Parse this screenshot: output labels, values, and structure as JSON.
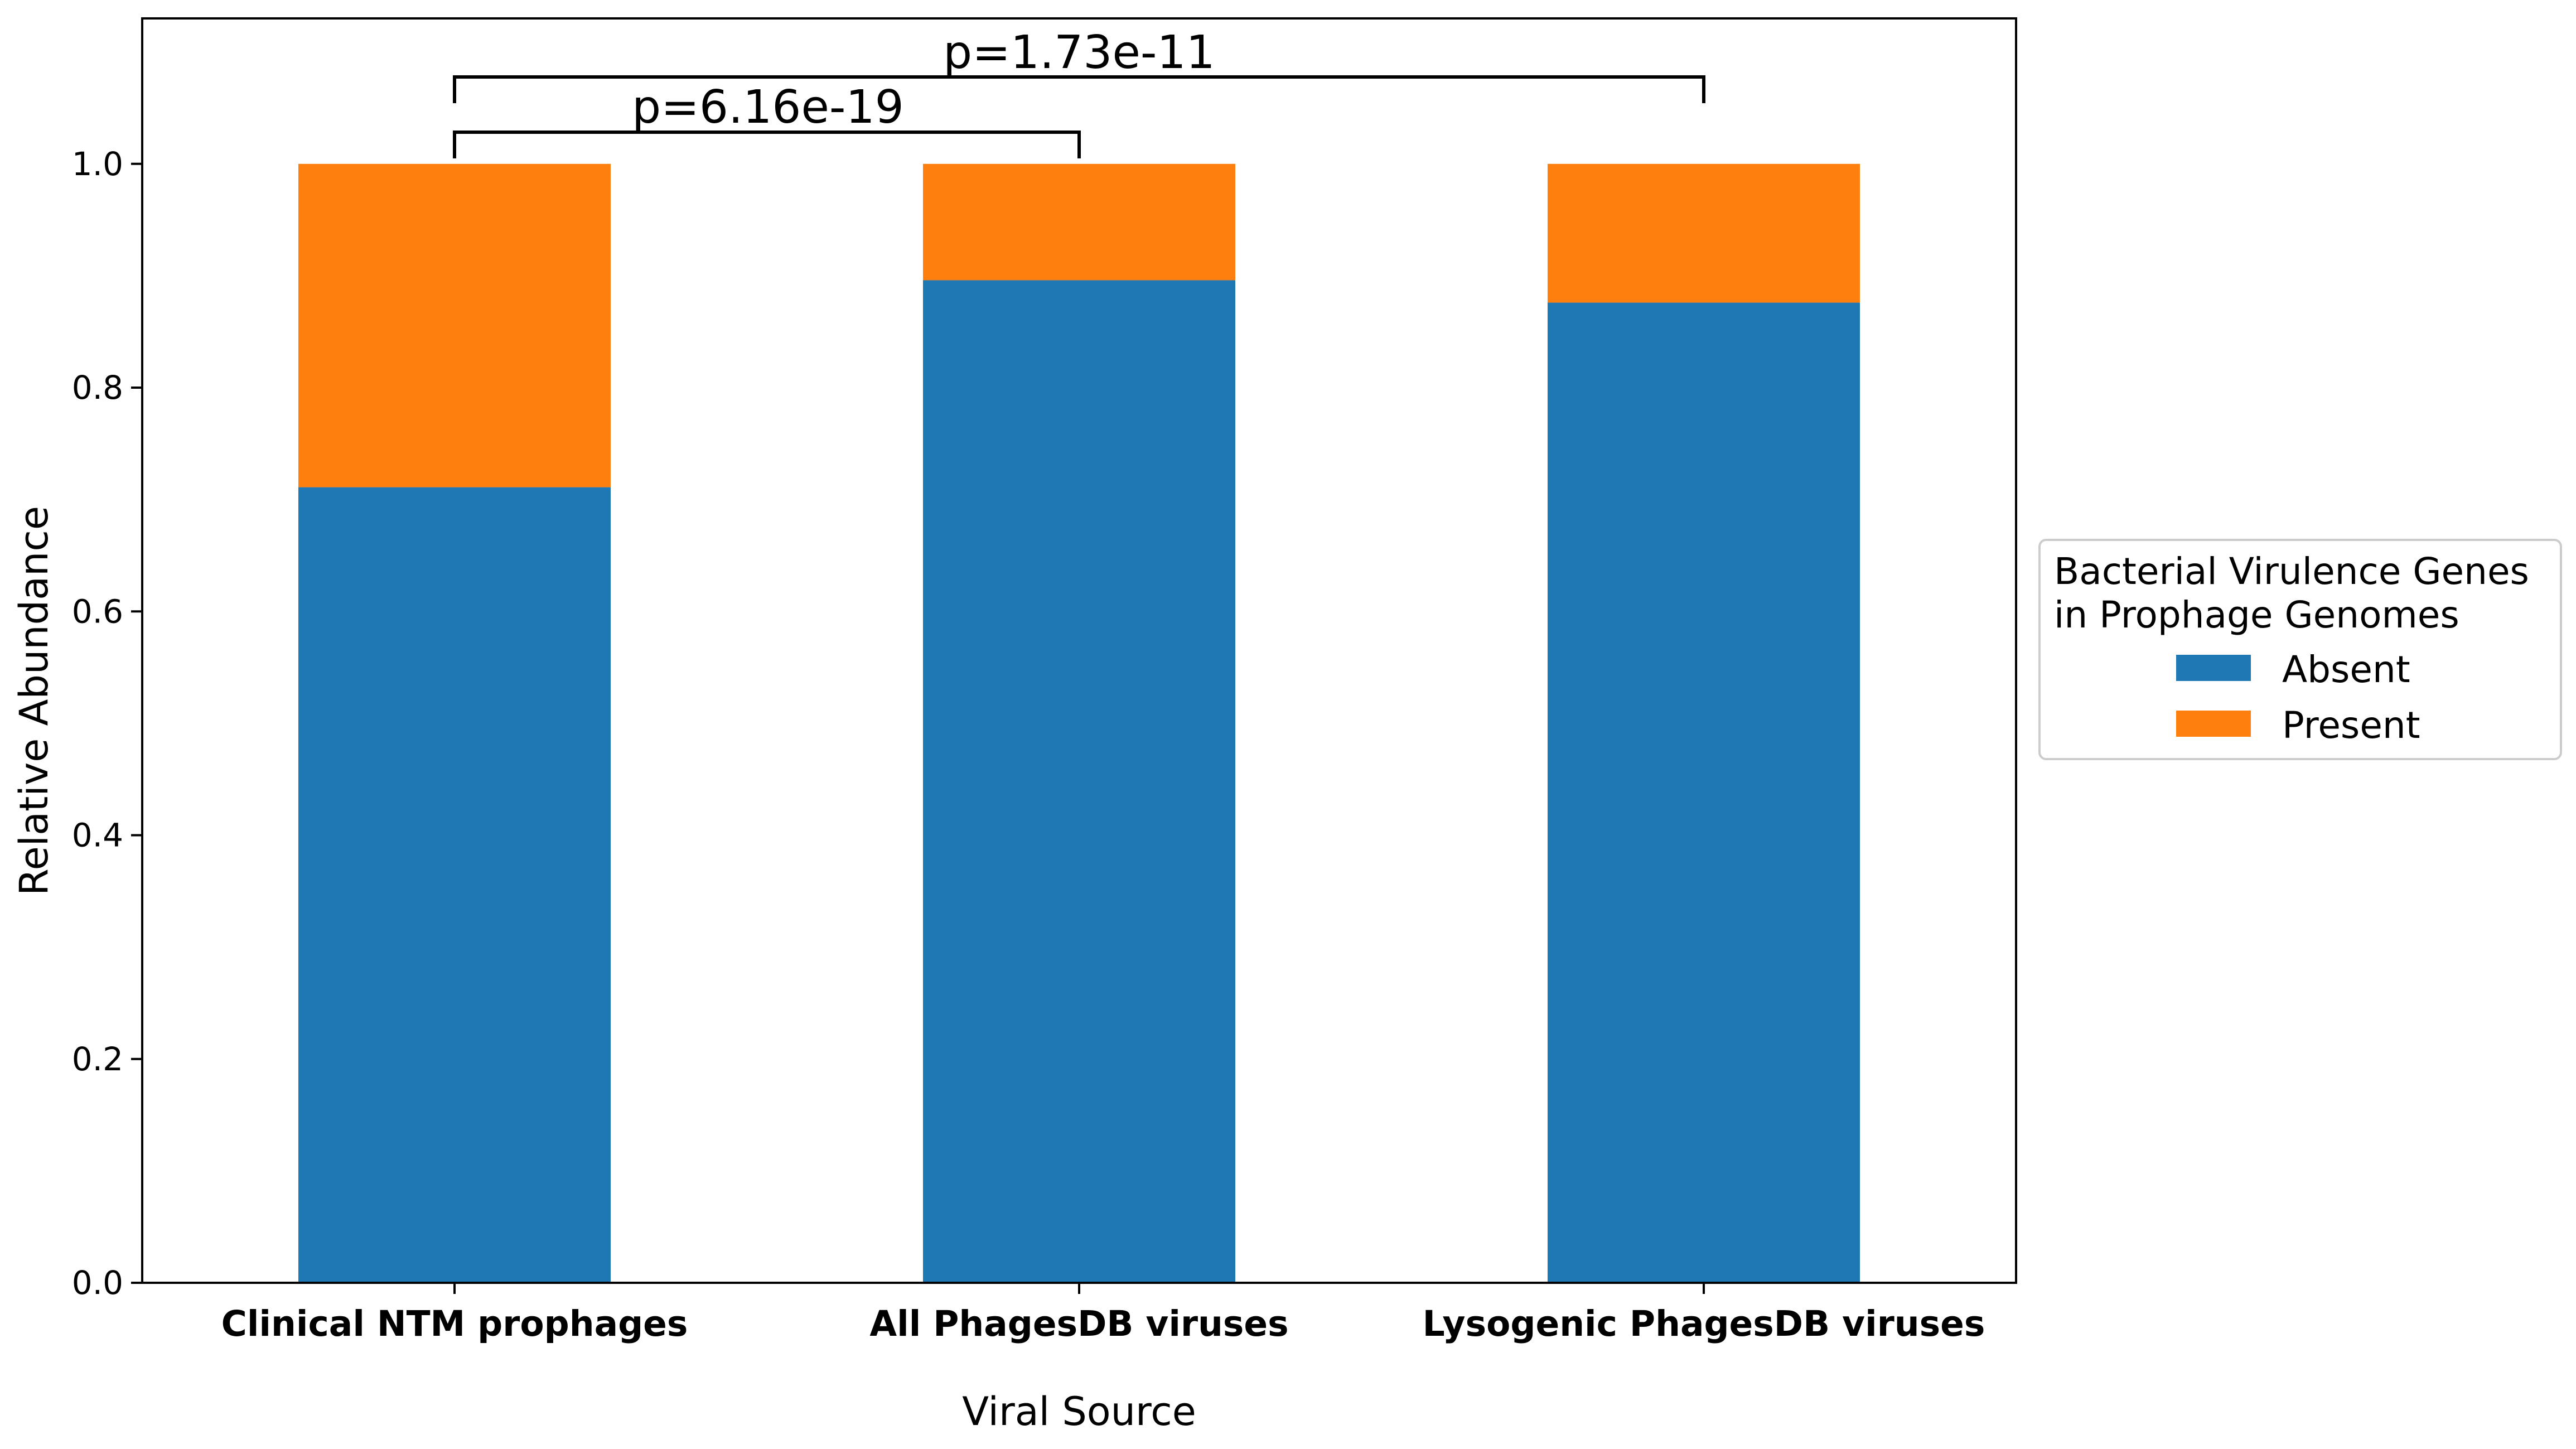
{
  "chart_data": {
    "type": "bar",
    "stacked": true,
    "categories": [
      "Clinical NTM prophages",
      "All PhagesDB viruses",
      "Lysogenic PhagesDB viruses"
    ],
    "series": [
      {
        "name": "Absent",
        "values": [
          0.711,
          0.896,
          0.876
        ],
        "color": "#1f77b4"
      },
      {
        "name": "Present",
        "values": [
          0.289,
          0.104,
          0.124
        ],
        "color": "#ff7f0e"
      }
    ],
    "title": "",
    "xlabel": "Viral Source",
    "ylabel": "Relative Abundance",
    "ylim": [
      0,
      1.13
    ],
    "yticks": [
      "0.0",
      "0.2",
      "0.4",
      "0.6",
      "0.8",
      "1.0"
    ],
    "grid": false,
    "legend": {
      "title_line1": "Bacterial Virulence Genes",
      "title_line2": "in Prophage Genomes",
      "placement": "outside-right"
    },
    "annotations": [
      {
        "from": 0,
        "to": 1,
        "label": "p=6.16e-19"
      },
      {
        "from": 0,
        "to": 2,
        "label": "p=1.73e-11"
      }
    ]
  }
}
